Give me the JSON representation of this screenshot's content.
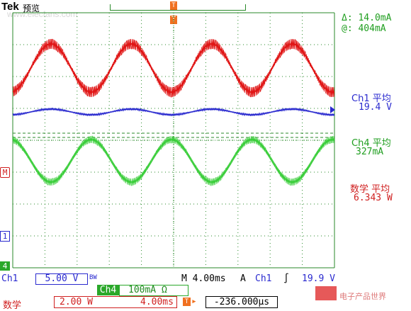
{
  "header": {
    "brand": "Tek",
    "mode": "预览",
    "trigger_marker": "T",
    "trigger_position_marker": "T"
  },
  "watermark": {
    "top": "www.elecfans.com",
    "bottom": "电子产品世界"
  },
  "cursor_readout": {
    "delta": "Δ:  14.0mA",
    "at": "@:  404mA"
  },
  "measurements": {
    "ch1": {
      "label": "Ch1 平均",
      "value": "19.4 V"
    },
    "ch4": {
      "label": "Ch4 平均",
      "value": "327mA"
    },
    "math": {
      "label": "数学 平均",
      "value": "6.343 W"
    }
  },
  "left_markers": {
    "math": "M",
    "ch1": "1",
    "ch4": "4"
  },
  "bottom": {
    "ch1_label": "Ch1",
    "ch1_scale": "5.00 V",
    "bw_symbol": "BW",
    "timebase": "M 4.00ms",
    "acq_label": "A",
    "trigger_source": "Ch1",
    "trigger_slope": "∫",
    "trigger_level": "19.9 V",
    "ch4_label": "Ch4",
    "ch4_scale": "100mA Ω",
    "math_label": "数学",
    "math_scale": "2.00 W",
    "math_time": "4.00ms",
    "trigger_marker": "T",
    "position_arrow": "▸",
    "position": "-236.000µs"
  },
  "colors": {
    "ch1": "#2a2acf",
    "ch4": "#33cc33",
    "math": "#e01515",
    "grid": "#2a8a2a",
    "trigger": "#f07020"
  }
}
